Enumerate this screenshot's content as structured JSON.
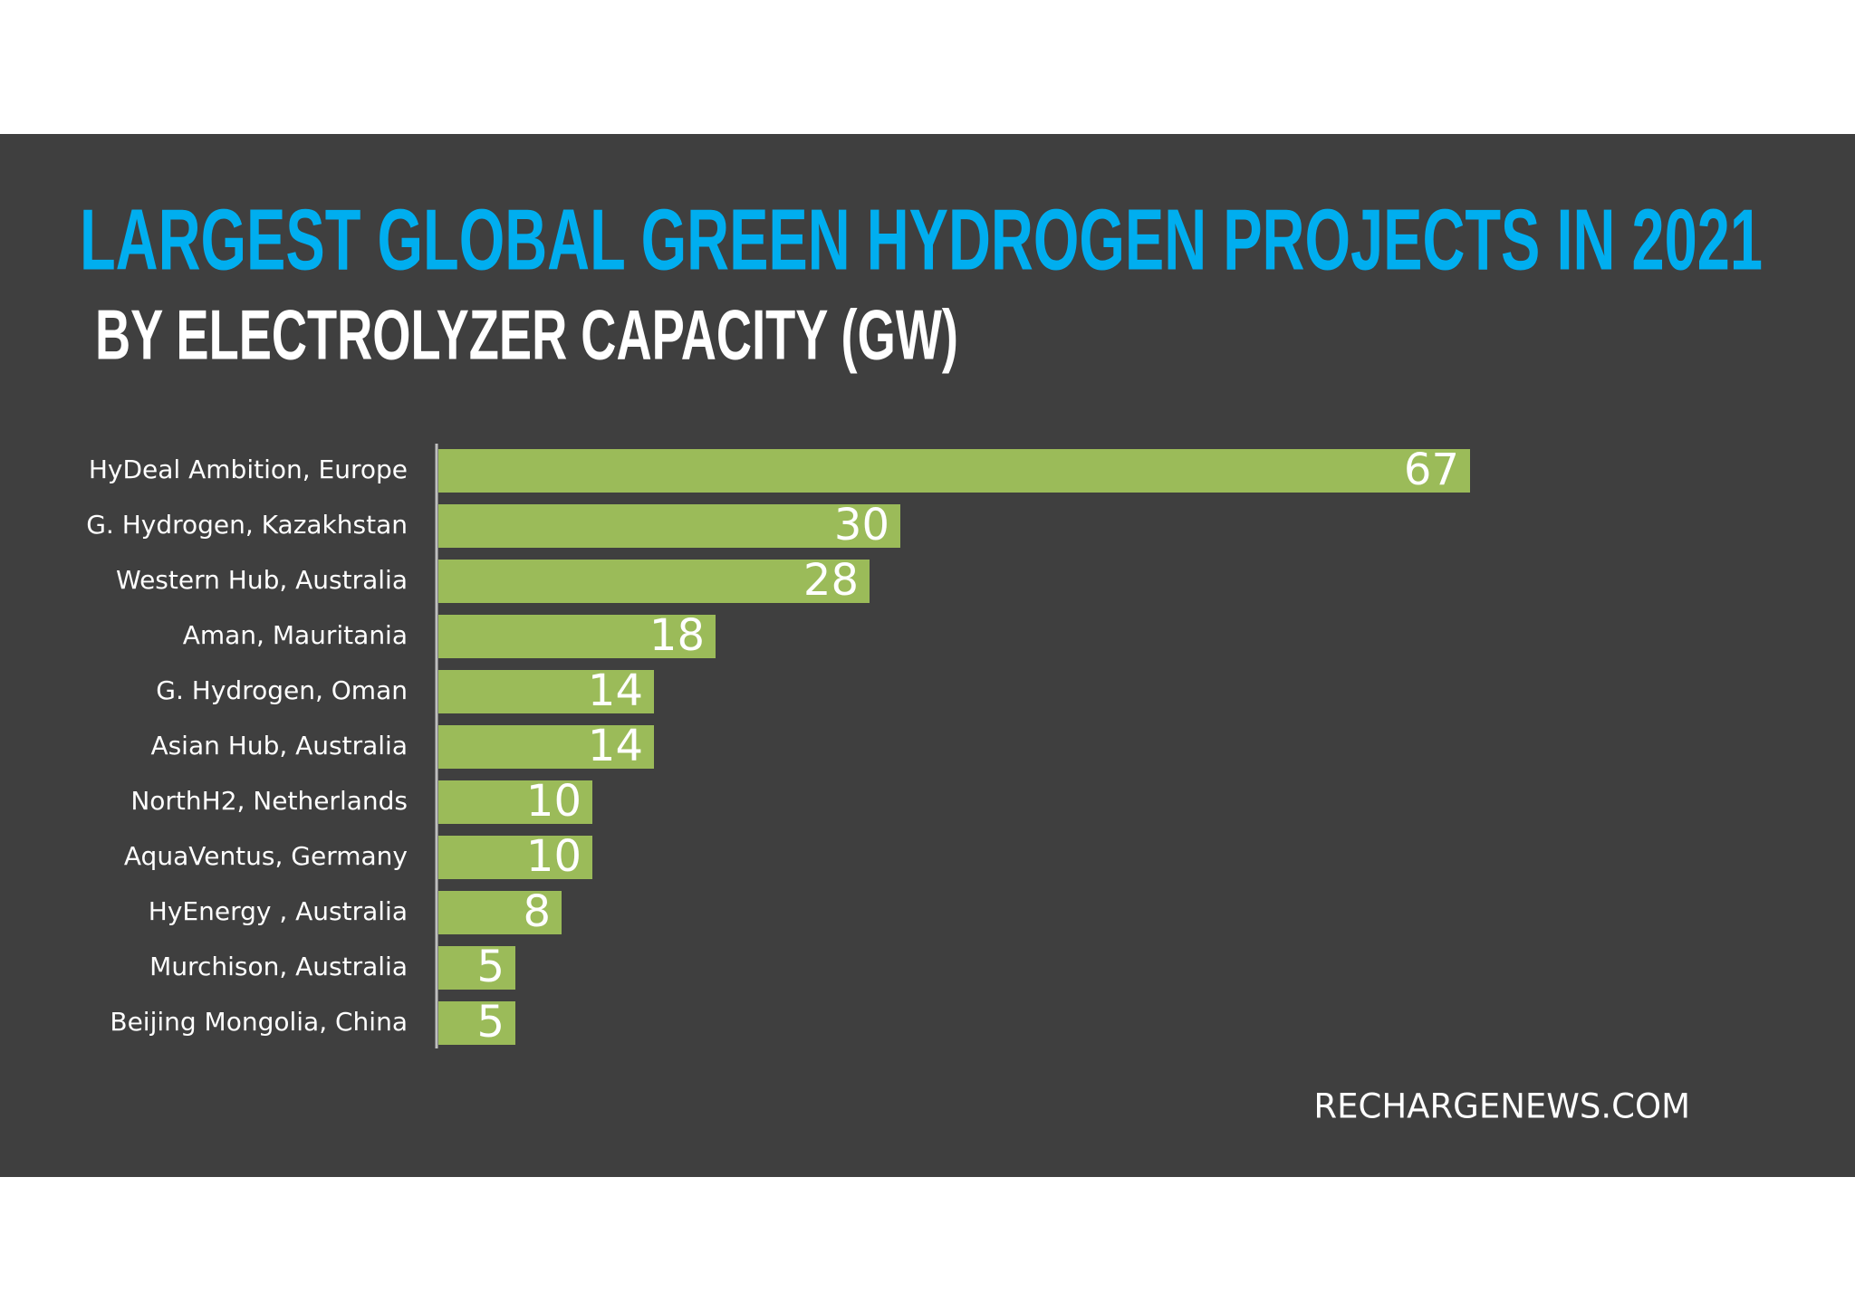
{
  "chart_data": {
    "type": "bar",
    "title": "LARGEST GLOBAL GREEN HYDROGEN PROJECTS IN 2021",
    "subtitle": "BY ELECTROLYZER CAPACITY (GW)",
    "source": "RECHARGENEWS.COM",
    "categories": [
      "HyDeal Ambition, Europe",
      "G. Hydrogen, Kazakhstan",
      "Western Hub, Australia",
      "Aman, Mauritania",
      "G. Hydrogen, Oman",
      "Asian Hub, Australia",
      "NorthH2, Netherlands",
      "AquaVentus, Germany",
      "HyEnergy , Australia",
      "Murchison, Australia",
      "Beijing Mongolia, China"
    ],
    "values": [
      67,
      30,
      28,
      18,
      14,
      14,
      10,
      10,
      8,
      5,
      5
    ],
    "color": "#9bbb59"
  }
}
